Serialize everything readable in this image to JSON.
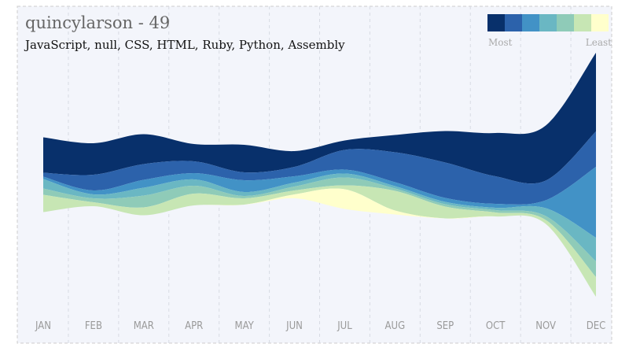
{
  "chart_data": {
    "type": "streamgraph",
    "title": "quincylarson - 49",
    "subtitle": "JavaScript, null, CSS, HTML, Ruby, Python, Assembly",
    "legend_labels": [
      "Most",
      "Least"
    ],
    "categories": [
      "JAN",
      "FEB",
      "MAR",
      "APR",
      "MAY",
      "JUN",
      "JUL",
      "AUG",
      "SEP",
      "OCT",
      "NOV",
      "DEC"
    ],
    "series": [
      {
        "color": "#08306b",
        "values": [
          45,
          40,
          38,
          22,
          35,
          20,
          12,
          22,
          40,
          55,
          70,
          100
        ]
      },
      {
        "color": "#2c62ab",
        "values": [
          5,
          20,
          20,
          15,
          10,
          12,
          25,
          38,
          45,
          35,
          25,
          45
        ]
      },
      {
        "color": "#4292c6",
        "values": [
          3,
          5,
          10,
          8,
          15,
          8,
          5,
          5,
          5,
          5,
          10,
          90
        ]
      },
      {
        "color": "#6ab7c3",
        "values": [
          12,
          5,
          10,
          8,
          5,
          5,
          5,
          3,
          3,
          3,
          10,
          30
        ]
      },
      {
        "color": "#8fcbb8",
        "values": [
          8,
          5,
          15,
          10,
          3,
          5,
          10,
          3,
          3,
          3,
          5,
          20
        ]
      },
      {
        "color": "#c7e6b4",
        "values": [
          22,
          5,
          10,
          15,
          8,
          5,
          5,
          25,
          15,
          5,
          5,
          25
        ]
      },
      {
        "color": "#ffffcc",
        "values": [
          0,
          0,
          0,
          0,
          0,
          5,
          25,
          5,
          0,
          0,
          0,
          0
        ]
      }
    ]
  }
}
